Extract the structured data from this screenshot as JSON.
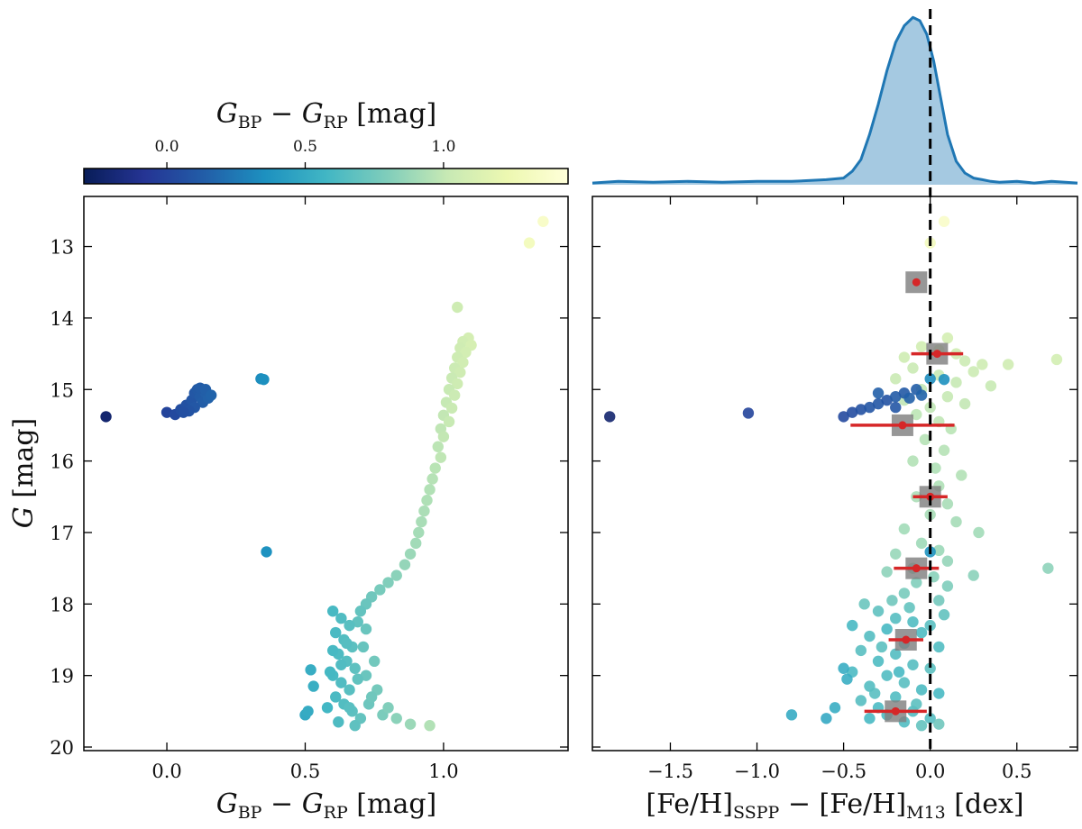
{
  "figure": {
    "colorbar": {
      "label_main": "G",
      "label_sub1": "BP",
      "label_minus": " − ",
      "label_main2": "G",
      "label_sub2": "RP",
      "label_unit": " [mag]",
      "range": [
        -0.3,
        1.45
      ],
      "ticks": [
        {
          "value": 0.0,
          "label": "0.0"
        },
        {
          "value": 0.5,
          "label": "0.5"
        },
        {
          "value": 1.0,
          "label": "1.0"
        }
      ],
      "colors": [
        "#081d58",
        "#253494",
        "#225ea8",
        "#1d91c0",
        "#41b6c4",
        "#7fcdbb",
        "#c7e9b4",
        "#edf8b1",
        "#ffffd9"
      ]
    },
    "left_xlabel": {
      "main": "G",
      "sub1": "BP",
      "minus": " − ",
      "main2": "G",
      "sub2": "RP",
      "unit": " [mag]"
    },
    "left_ylabel": {
      "main": "G",
      "unit": " [mag]"
    },
    "right_xlabel": {
      "pre": "[Fe/H]",
      "sub1": "SSPP",
      "minus": " − [Fe/H]",
      "sub2": "M13",
      "unit": " [dex]"
    }
  },
  "chart_data": [
    {
      "type": "scatter",
      "id": "cmd",
      "title": "",
      "xlabel": "G_BP − G_RP [mag]",
      "ylabel": "G [mag]",
      "xlim": [
        -0.3,
        1.45
      ],
      "ylim": [
        20.05,
        12.3
      ],
      "xticks": [
        {
          "value": 0.0,
          "label": "0.0"
        },
        {
          "value": 0.5,
          "label": "0.5"
        },
        {
          "value": 1.0,
          "label": "1.0"
        }
      ],
      "yticks": [
        {
          "value": 13,
          "label": "13"
        },
        {
          "value": 14,
          "label": "14"
        },
        {
          "value": 15,
          "label": "15"
        },
        {
          "value": 16,
          "label": "16"
        },
        {
          "value": 17,
          "label": "17"
        },
        {
          "value": 18,
          "label": "18"
        },
        {
          "value": 19,
          "label": "19"
        },
        {
          "value": 20,
          "label": "20"
        }
      ],
      "color_by": "x",
      "points": [
        [
          1.36,
          12.65
        ],
        [
          1.31,
          12.95
        ],
        [
          1.05,
          13.85
        ],
        [
          1.09,
          14.28
        ],
        [
          1.07,
          14.33
        ],
        [
          1.1,
          14.38
        ],
        [
          1.06,
          14.42
        ],
        [
          1.08,
          14.48
        ],
        [
          1.05,
          14.55
        ],
        [
          1.07,
          14.62
        ],
        [
          1.04,
          14.7
        ],
        [
          1.06,
          14.76
        ],
        [
          1.03,
          14.84
        ],
        [
          1.05,
          14.92
        ],
        [
          1.02,
          15.0
        ],
        [
          1.04,
          15.08
        ],
        [
          1.01,
          15.18
        ],
        [
          1.03,
          15.26
        ],
        [
          1.0,
          15.36
        ],
        [
          1.02,
          15.45
        ],
        [
          0.99,
          15.55
        ],
        [
          1.0,
          15.66
        ],
        [
          0.98,
          15.8
        ],
        [
          0.99,
          15.95
        ],
        [
          0.97,
          16.1
        ],
        [
          0.96,
          16.25
        ],
        [
          0.95,
          16.4
        ],
        [
          0.94,
          16.55
        ],
        [
          0.93,
          16.7
        ],
        [
          0.92,
          16.85
        ],
        [
          0.91,
          17.0
        ],
        [
          0.9,
          17.15
        ],
        [
          0.88,
          17.3
        ],
        [
          0.86,
          17.45
        ],
        [
          0.83,
          17.6
        ],
        [
          0.8,
          17.7
        ],
        [
          0.77,
          17.8
        ],
        [
          0.74,
          17.9
        ],
        [
          0.72,
          18.0
        ],
        [
          0.7,
          18.1
        ],
        [
          0.69,
          18.25
        ],
        [
          0.6,
          18.1
        ],
        [
          0.63,
          18.2
        ],
        [
          0.66,
          18.3
        ],
        [
          0.61,
          18.4
        ],
        [
          0.64,
          18.5
        ],
        [
          0.67,
          18.6
        ],
        [
          0.62,
          18.7
        ],
        [
          0.65,
          18.8
        ],
        [
          0.68,
          18.9
        ],
        [
          0.6,
          19.0
        ],
        [
          0.63,
          19.1
        ],
        [
          0.66,
          19.2
        ],
        [
          0.61,
          19.3
        ],
        [
          0.64,
          19.4
        ],
        [
          0.67,
          19.5
        ],
        [
          0.7,
          19.6
        ],
        [
          0.73,
          19.4
        ],
        [
          0.76,
          19.2
        ],
        [
          0.72,
          19.0
        ],
        [
          0.75,
          18.8
        ],
        [
          0.71,
          18.6
        ],
        [
          0.74,
          19.3
        ],
        [
          0.78,
          19.55
        ],
        [
          0.62,
          19.65
        ],
        [
          0.58,
          19.45
        ],
        [
          0.59,
          18.95
        ],
        [
          0.69,
          19.05
        ],
        [
          0.65,
          18.55
        ],
        [
          0.72,
          18.35
        ],
        [
          0.8,
          19.45
        ],
        [
          0.83,
          19.6
        ],
        [
          0.68,
          19.7
        ],
        [
          0.6,
          18.65
        ],
        [
          0.66,
          19.45
        ],
        [
          0.63,
          18.85
        ],
        [
          0.52,
          18.92
        ],
        [
          0.53,
          19.15
        ],
        [
          0.5,
          19.55
        ],
        [
          0.51,
          19.5
        ],
        [
          0.88,
          19.68
        ],
        [
          0.95,
          19.7
        ],
        [
          -0.22,
          15.38
        ],
        [
          0.0,
          15.32
        ],
        [
          0.03,
          15.35
        ],
        [
          0.05,
          15.28
        ],
        [
          0.07,
          15.22
        ],
        [
          0.09,
          15.15
        ],
        [
          0.1,
          15.05
        ],
        [
          0.11,
          15.0
        ],
        [
          0.12,
          15.1
        ],
        [
          0.13,
          15.18
        ],
        [
          0.14,
          15.05
        ],
        [
          0.15,
          15.12
        ],
        [
          0.1,
          15.25
        ],
        [
          0.08,
          15.3
        ],
        [
          0.06,
          15.32
        ],
        [
          0.12,
          14.98
        ],
        [
          0.14,
          15.0
        ],
        [
          0.16,
          15.08
        ],
        [
          0.34,
          14.85
        ],
        [
          0.35,
          14.86
        ],
        [
          0.36,
          17.27
        ]
      ]
    },
    {
      "type": "scatter",
      "id": "feh",
      "title": "",
      "xlabel": "[Fe/H]_SSPP − [Fe/H]_M13 [dex]",
      "ylabel": "",
      "xlim": [
        -1.95,
        0.85
      ],
      "ylim": [
        20.05,
        12.3
      ],
      "xticks": [
        {
          "value": -1.5,
          "label": "−1.5"
        },
        {
          "value": -1.0,
          "label": "−1.0"
        },
        {
          "value": -0.5,
          "label": "−0.5"
        },
        {
          "value": 0.0,
          "label": "0.0"
        },
        {
          "value": 0.5,
          "label": "0.5"
        }
      ],
      "yticks": [
        13,
        14,
        15,
        16,
        17,
        18,
        19,
        20
      ],
      "reference_line_x": 0.0,
      "points": [
        [
          0.08,
          12.65,
          1.36
        ],
        [
          0.0,
          12.95,
          1.31
        ],
        [
          0.1,
          14.28,
          1.09
        ],
        [
          -0.05,
          14.4,
          1.07
        ],
        [
          0.05,
          14.45,
          1.1
        ],
        [
          0.15,
          14.5,
          1.06
        ],
        [
          -0.15,
          14.55,
          1.05
        ],
        [
          0.2,
          14.6,
          1.04
        ],
        [
          0.3,
          14.65,
          1.05
        ],
        [
          0.45,
          14.65,
          1.06
        ],
        [
          0.73,
          14.58,
          1.08
        ],
        [
          -0.1,
          14.7,
          1.03
        ],
        [
          0.25,
          14.75,
          1.04
        ],
        [
          0.05,
          14.8,
          1.02
        ],
        [
          -0.2,
          14.85,
          1.03
        ],
        [
          0.15,
          14.9,
          1.01
        ],
        [
          0.35,
          14.95,
          1.02
        ],
        [
          -0.05,
          15.0,
          1.0
        ],
        [
          0.1,
          15.1,
          1.01
        ],
        [
          -0.15,
          15.15,
          0.99
        ],
        [
          0.2,
          15.2,
          1.0
        ],
        [
          0.0,
          15.25,
          0.99
        ],
        [
          -0.08,
          15.35,
          0.98
        ],
        [
          0.05,
          15.45,
          0.99
        ],
        [
          0.12,
          15.55,
          0.97
        ],
        [
          -0.03,
          15.7,
          0.96
        ],
        [
          0.08,
          15.85,
          0.96
        ],
        [
          -0.1,
          16.0,
          0.95
        ],
        [
          0.03,
          16.1,
          0.94
        ],
        [
          0.18,
          16.2,
          0.95
        ],
        [
          0.05,
          16.35,
          0.94
        ],
        [
          -0.08,
          16.5,
          0.93
        ],
        [
          0.1,
          16.6,
          0.92
        ],
        [
          0.0,
          16.75,
          0.92
        ],
        [
          0.15,
          16.85,
          0.91
        ],
        [
          -0.15,
          16.95,
          0.9
        ],
        [
          0.28,
          17.0,
          0.9
        ],
        [
          -0.05,
          17.15,
          0.89
        ],
        [
          0.05,
          17.25,
          0.88
        ],
        [
          -0.2,
          17.3,
          0.87
        ],
        [
          0.1,
          17.4,
          0.86
        ],
        [
          -0.1,
          17.5,
          0.85
        ],
        [
          0.25,
          17.6,
          0.83
        ],
        [
          0.68,
          17.5,
          0.84
        ],
        [
          -0.25,
          17.55,
          0.84
        ],
        [
          0.02,
          17.62,
          0.82
        ],
        [
          -0.08,
          17.7,
          0.8
        ],
        [
          0.1,
          17.75,
          0.79
        ],
        [
          -0.15,
          17.85,
          0.77
        ],
        [
          0.05,
          17.95,
          0.75
        ],
        [
          -0.3,
          18.1,
          0.68
        ],
        [
          -0.2,
          18.2,
          0.65
        ],
        [
          -0.1,
          18.25,
          0.63
        ],
        [
          0.0,
          18.3,
          0.66
        ],
        [
          -0.25,
          18.35,
          0.6
        ],
        [
          -0.05,
          18.4,
          0.62
        ],
        [
          -0.35,
          18.45,
          0.64
        ],
        [
          -0.15,
          18.55,
          0.61
        ],
        [
          0.05,
          18.6,
          0.63
        ],
        [
          -0.4,
          18.65,
          0.66
        ],
        [
          -0.2,
          18.7,
          0.64
        ],
        [
          -0.3,
          18.8,
          0.62
        ],
        [
          -0.1,
          18.85,
          0.65
        ],
        [
          0.0,
          18.9,
          0.67
        ],
        [
          -0.45,
          18.95,
          0.61
        ],
        [
          -0.25,
          19.0,
          0.63
        ],
        [
          -0.15,
          19.1,
          0.66
        ],
        [
          -0.35,
          19.15,
          0.64
        ],
        [
          -0.05,
          19.2,
          0.62
        ],
        [
          0.05,
          19.25,
          0.6
        ],
        [
          -0.2,
          19.3,
          0.63
        ],
        [
          -0.4,
          19.35,
          0.65
        ],
        [
          -0.3,
          19.45,
          0.61
        ],
        [
          -0.1,
          19.5,
          0.64
        ],
        [
          -0.25,
          19.55,
          0.62
        ],
        [
          0.0,
          19.6,
          0.65
        ],
        [
          -0.15,
          19.65,
          0.63
        ],
        [
          -0.35,
          19.6,
          0.6
        ],
        [
          -0.05,
          19.7,
          0.7
        ],
        [
          0.05,
          19.68,
          0.74
        ],
        [
          -0.55,
          19.45,
          0.52
        ],
        [
          -0.6,
          19.6,
          0.5
        ],
        [
          -0.8,
          19.55,
          0.51
        ],
        [
          -0.48,
          19.05,
          0.53
        ],
        [
          -0.5,
          18.9,
          0.52
        ],
        [
          -0.45,
          18.3,
          0.6
        ],
        [
          -0.38,
          18.0,
          0.72
        ],
        [
          -0.22,
          17.95,
          0.74
        ],
        [
          -0.12,
          18.05,
          0.7
        ],
        [
          0.08,
          18.15,
          0.69
        ],
        [
          -0.28,
          18.6,
          0.67
        ],
        [
          -0.18,
          18.95,
          0.6
        ],
        [
          -0.08,
          19.4,
          0.67
        ],
        [
          -0.32,
          19.25,
          0.66
        ],
        [
          -1.85,
          15.38,
          -0.22
        ],
        [
          -1.05,
          15.33,
          0.0
        ],
        [
          -0.5,
          15.38,
          0.03
        ],
        [
          -0.45,
          15.32,
          0.05
        ],
        [
          -0.4,
          15.28,
          0.07
        ],
        [
          -0.35,
          15.25,
          0.09
        ],
        [
          -0.3,
          15.2,
          0.1
        ],
        [
          -0.25,
          15.15,
          0.08
        ],
        [
          -0.2,
          15.1,
          0.12
        ],
        [
          -0.15,
          15.05,
          0.11
        ],
        [
          -0.08,
          15.0,
          0.13
        ],
        [
          -0.3,
          15.05,
          0.14
        ],
        [
          -0.2,
          15.25,
          0.1
        ],
        [
          -0.12,
          15.12,
          0.15
        ],
        [
          -0.05,
          15.08,
          0.16
        ],
        [
          0.0,
          14.85,
          0.34
        ],
        [
          0.08,
          14.86,
          0.35
        ],
        [
          0.0,
          17.27,
          0.36
        ]
      ],
      "bins": [
        {
          "G": 13.5,
          "mean": -0.08,
          "std": 0.0
        },
        {
          "G": 14.5,
          "mean": 0.04,
          "std": 0.15
        },
        {
          "G": 15.5,
          "mean": -0.16,
          "std": 0.3
        },
        {
          "G": 16.5,
          "mean": 0.0,
          "std": 0.1
        },
        {
          "G": 17.5,
          "mean": -0.08,
          "std": 0.13
        },
        {
          "G": 18.5,
          "mean": -0.14,
          "std": 0.1
        },
        {
          "G": 19.5,
          "mean": -0.2,
          "std": 0.18
        }
      ]
    },
    {
      "type": "area",
      "id": "kde",
      "title": "",
      "xlim": [
        -1.95,
        0.85
      ],
      "ylim": [
        0,
        1.05
      ],
      "x": [
        -1.95,
        -1.8,
        -1.6,
        -1.4,
        -1.2,
        -1.0,
        -0.8,
        -0.6,
        -0.5,
        -0.45,
        -0.4,
        -0.35,
        -0.3,
        -0.25,
        -0.2,
        -0.15,
        -0.1,
        -0.06,
        -0.02,
        0.02,
        0.06,
        0.1,
        0.15,
        0.2,
        0.25,
        0.3,
        0.35,
        0.4,
        0.5,
        0.6,
        0.7,
        0.85
      ],
      "y": [
        0.01,
        0.02,
        0.015,
        0.02,
        0.015,
        0.02,
        0.02,
        0.03,
        0.04,
        0.08,
        0.15,
        0.3,
        0.48,
        0.68,
        0.85,
        0.95,
        1.0,
        0.98,
        0.9,
        0.74,
        0.52,
        0.3,
        0.14,
        0.07,
        0.04,
        0.03,
        0.02,
        0.015,
        0.02,
        0.01,
        0.02,
        0.01
      ],
      "reference_line_x": 0.0
    }
  ]
}
